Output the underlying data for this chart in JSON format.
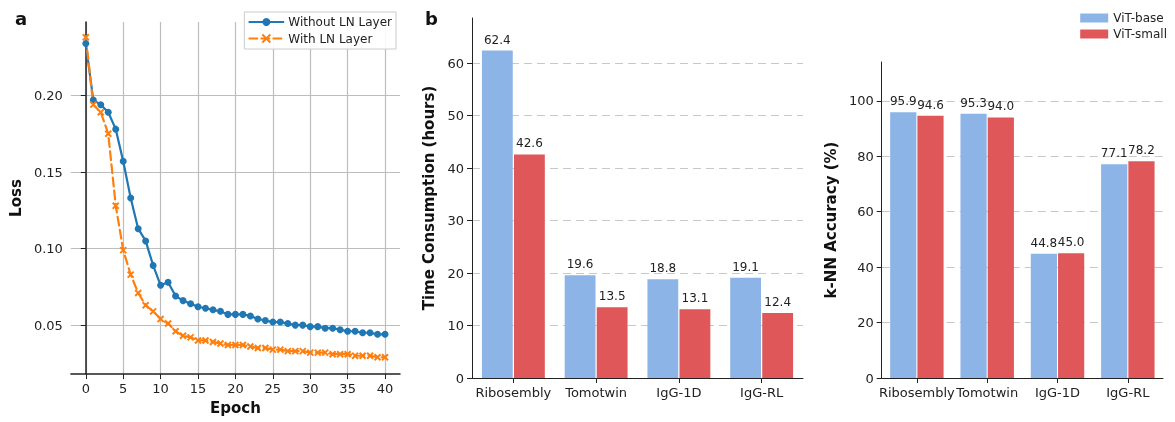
{
  "chart_data": [
    {
      "type": "line",
      "title": "a",
      "xlabel": "Epoch",
      "ylabel": "Loss",
      "x": [
        0,
        1,
        2,
        3,
        4,
        5,
        6,
        7,
        8,
        9,
        10,
        11,
        12,
        13,
        14,
        15,
        16,
        17,
        18,
        19,
        20,
        21,
        22,
        23,
        24,
        25,
        26,
        27,
        28,
        29,
        30,
        31,
        32,
        33,
        34,
        35,
        36,
        37,
        38,
        39,
        40
      ],
      "xlim": [
        -2,
        42
      ],
      "xticks": [
        0,
        5,
        10,
        15,
        20,
        25,
        30,
        35,
        40
      ],
      "ylim": [
        0.018,
        0.248
      ],
      "yticks": [
        {
          "value": 0.05,
          "label": "0.05"
        },
        {
          "value": 0.1,
          "label": "0.10"
        },
        {
          "value": 0.15,
          "label": "0.15"
        },
        {
          "value": 0.2,
          "label": "0.20"
        }
      ],
      "grid": true,
      "legend": "top right",
      "series": [
        {
          "name": "Without LN Layer",
          "color": "#1f77b4",
          "marker": "circle",
          "line_style": "solid",
          "values": [
            0.234,
            0.197,
            0.194,
            0.189,
            0.178,
            0.157,
            0.133,
            0.113,
            0.105,
            0.089,
            0.076,
            0.078,
            0.069,
            0.066,
            0.064,
            0.062,
            0.061,
            0.06,
            0.059,
            0.057,
            0.057,
            0.057,
            0.056,
            0.054,
            0.053,
            0.052,
            0.052,
            0.051,
            0.05,
            0.05,
            0.049,
            0.049,
            0.048,
            0.048,
            0.047,
            0.046,
            0.046,
            0.045,
            0.045,
            0.044,
            0.044
          ]
        },
        {
          "name": "With LN Layer",
          "color": "#ff7f0e",
          "marker": "cross",
          "line_style": "dashed",
          "values": [
            0.238,
            0.194,
            0.189,
            0.175,
            0.128,
            0.099,
            0.083,
            0.071,
            0.063,
            0.059,
            0.054,
            0.051,
            0.046,
            0.043,
            0.042,
            0.04,
            0.04,
            0.039,
            0.038,
            0.037,
            0.037,
            0.037,
            0.036,
            0.035,
            0.035,
            0.034,
            0.034,
            0.033,
            0.033,
            0.033,
            0.032,
            0.032,
            0.032,
            0.031,
            0.031,
            0.031,
            0.03,
            0.03,
            0.03,
            0.029,
            0.029
          ]
        }
      ]
    },
    {
      "type": "bar",
      "title": "b",
      "ylabel": "Time Consumption (hours)",
      "categories": [
        "Ribosembly",
        "Tomotwin",
        "IgG-1D",
        "IgG-RL"
      ],
      "ylim": [
        0,
        68.6
      ],
      "yticks": [
        0,
        10,
        20,
        30,
        40,
        50,
        60
      ],
      "grid": "y",
      "data_labels": true,
      "series": [
        {
          "color": "#8db4e6",
          "values": [
            62.4,
            19.6,
            18.8,
            19.1
          ]
        },
        {
          "color": "#e0575a",
          "values": [
            42.6,
            13.5,
            13.1,
            12.4
          ]
        }
      ]
    },
    {
      "type": "bar",
      "ylabel": "k-NN Accuracy (%)",
      "categories": [
        "Ribosembly",
        "Tomotwin",
        "IgG-1D",
        "IgG-RL"
      ],
      "ylim": [
        0,
        114
      ],
      "yticks": [
        0,
        20,
        40,
        60,
        80,
        100
      ],
      "grid": "y",
      "legend": "top right",
      "series": [
        {
          "name": "ViT-base",
          "color": "#8db4e6",
          "values": [
            95.9,
            95.3,
            44.8,
            77.1
          ],
          "value_labels": [
            "95.9",
            "95.3",
            "44.8",
            "77.1"
          ]
        },
        {
          "name": "ViT-small",
          "color": "#e0575a",
          "values": [
            94.6,
            94.0,
            45.0,
            78.2
          ],
          "value_labels": [
            "94.6",
            "94.0",
            "45.0",
            "78.2"
          ]
        }
      ]
    }
  ]
}
